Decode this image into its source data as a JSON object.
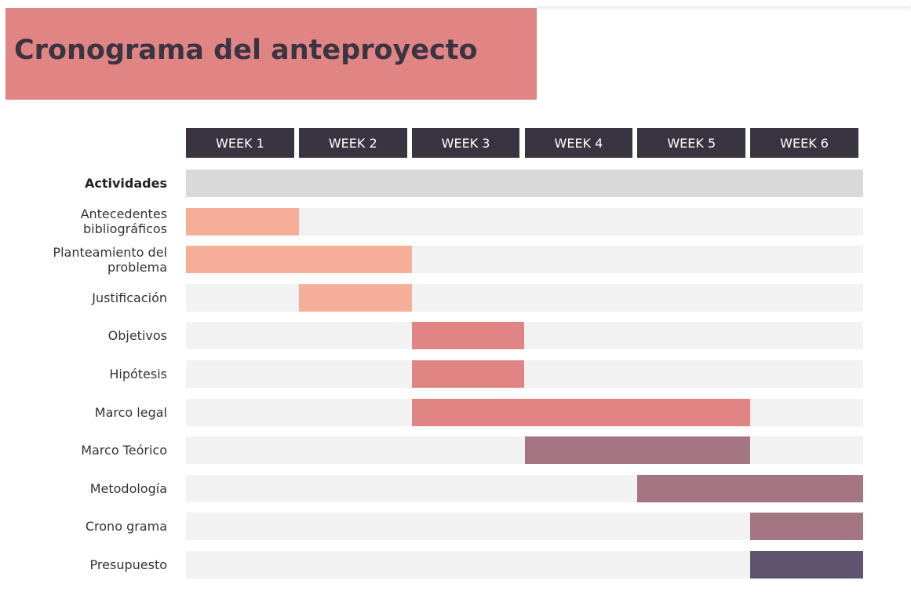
{
  "chart_data": {
    "type": "gantt",
    "title": "Cronograma del anteproyecto",
    "row_header": "Actividades",
    "categories": [
      "WEEK 1",
      "WEEK 2",
      "WEEK 3",
      "WEEK 4",
      "WEEK 5",
      "WEEK 6"
    ],
    "xlim": [
      0,
      6
    ],
    "tasks": [
      {
        "name": "Antecedentes bibliográficos",
        "start": 0,
        "end": 1,
        "color": "#f5ae98"
      },
      {
        "name": "Planteamiento del problema",
        "start": 0,
        "end": 2,
        "color": "#f5ae98"
      },
      {
        "name": "Justificación",
        "start": 1,
        "end": 2,
        "color": "#f5ae98"
      },
      {
        "name": "Objetivos",
        "start": 2,
        "end": 3,
        "color": "#e08484"
      },
      {
        "name": "Hipótesis",
        "start": 2,
        "end": 3,
        "color": "#e08484"
      },
      {
        "name": "Marco legal",
        "start": 2,
        "end": 5,
        "color": "#e08484"
      },
      {
        "name": "Marco Teórico",
        "start": 3,
        "end": 5,
        "color": "#a47583"
      },
      {
        "name": "Metodología",
        "start": 4,
        "end": 6,
        "color": "#a47583"
      },
      {
        "name": "Crono grama",
        "start": 5,
        "end": 6,
        "color": "#a47583"
      },
      {
        "name": "Presupuesto",
        "start": 5,
        "end": 6,
        "color": "#5e5470"
      }
    ]
  }
}
